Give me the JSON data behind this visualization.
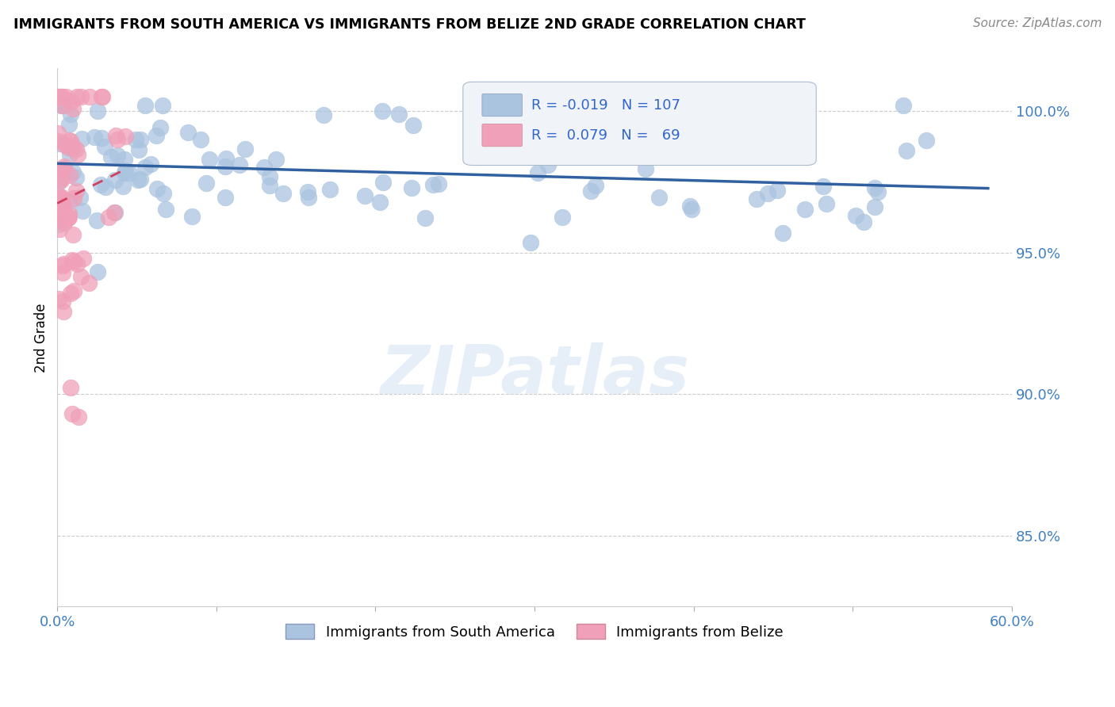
{
  "title": "IMMIGRANTS FROM SOUTH AMERICA VS IMMIGRANTS FROM BELIZE 2ND GRADE CORRELATION CHART",
  "source": "Source: ZipAtlas.com",
  "ylabel": "2nd Grade",
  "xlim": [
    0.0,
    0.6
  ],
  "ylim": [
    0.825,
    1.015
  ],
  "yticks": [
    0.85,
    0.9,
    0.95,
    1.0
  ],
  "ytick_labels": [
    "85.0%",
    "90.0%",
    "95.0%",
    "100.0%"
  ],
  "xtick_positions": [
    0.0,
    0.1,
    0.2,
    0.3,
    0.4,
    0.5,
    0.6
  ],
  "xtick_labels": [
    "0.0%",
    "",
    "",
    "",
    "",
    "",
    "60.0%"
  ],
  "color_blue": "#aac4e0",
  "color_pink": "#f0a0b8",
  "trendline_blue": "#3060a0",
  "trendline_pink": "#d04060",
  "watermark": "ZIPatlas",
  "legend_box_color": "#e8f0f8",
  "legend_border": "#bbccdd"
}
